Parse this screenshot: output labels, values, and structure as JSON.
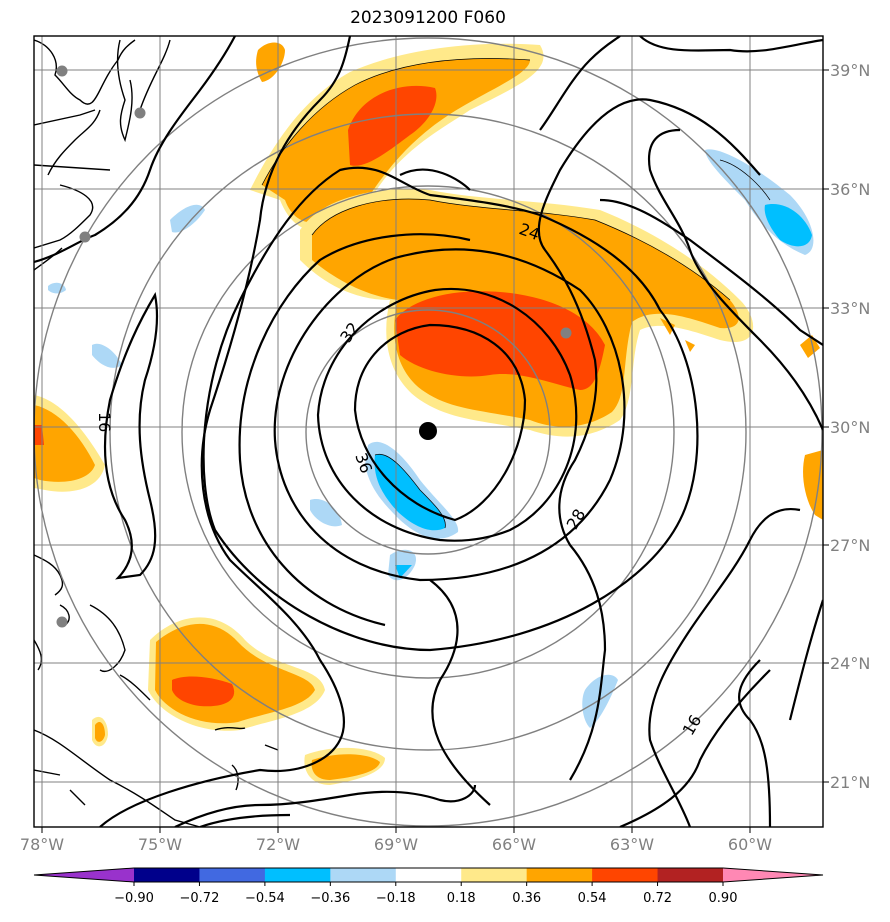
{
  "title": "2023091200 F060",
  "map": {
    "x_ticks": [
      "78°W",
      "75°W",
      "72°W",
      "69°W",
      "66°W",
      "63°W",
      "60°W"
    ],
    "y_ticks": [
      "39°N",
      "36°N",
      "33°N",
      "30°N",
      "27°N",
      "24°N",
      "21°N"
    ],
    "storm_center": {
      "lon": -68.2,
      "lat": 29.9
    },
    "range_ring_radii_deg": [
      3,
      6,
      9,
      12
    ],
    "contour_labels": [
      "24",
      "32",
      "36",
      "16",
      "28",
      "16"
    ],
    "gray_markers": "observation-station"
  },
  "colorbar": {
    "tick_labels": [
      "−0.90",
      "−0.72",
      "−0.54",
      "−0.36",
      "−0.18",
      "0.18",
      "0.36",
      "0.54",
      "0.72",
      "0.90"
    ],
    "colors": [
      "#9932cc",
      "#00008b",
      "#4169e1",
      "#00bfff",
      "#add8f6",
      "#ffffff",
      "#ffe98a",
      "#ffa500",
      "#ff4500",
      "#b22222",
      "#ff88b4"
    ]
  }
}
